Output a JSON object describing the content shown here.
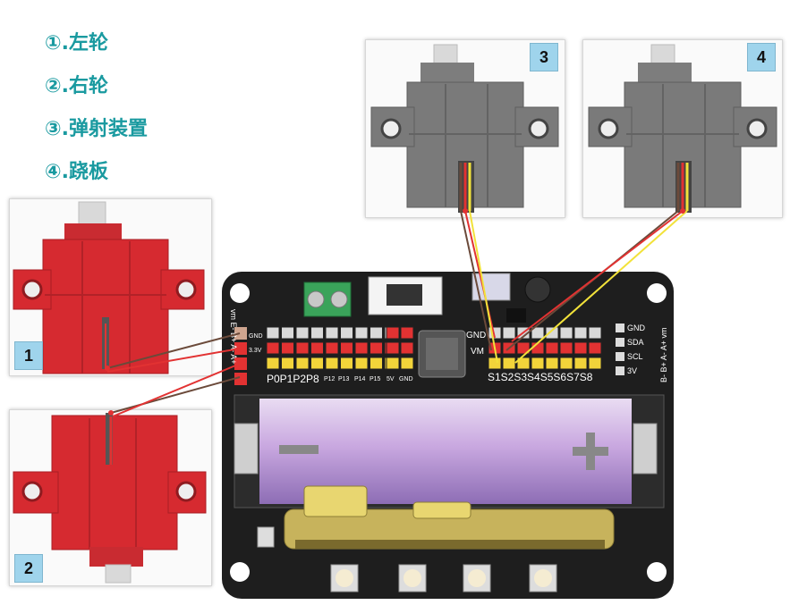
{
  "legend": [
    {
      "label": "①.左轮"
    },
    {
      "label": "②.右轮"
    },
    {
      "label": "③.弹射装置"
    },
    {
      "label": "④.跷板"
    }
  ],
  "badges": [
    "1",
    "2",
    "3",
    "4"
  ],
  "board": {
    "left_header": [
      "vm",
      "E",
      "B",
      "+",
      "A",
      "-",
      "A",
      "+"
    ],
    "left_header_text": "vm E- B+ A- A+",
    "gnd": "GND",
    "v33": "3.3V",
    "v5": "5V",
    "gnd2": "GND",
    "vm": "VM",
    "pin_labels_big": "P0P1P2P8",
    "pin_labels_small": [
      "P12",
      "P13",
      "P14",
      "P15"
    ],
    "servo_labels": "S1S2S3S4S5S6S7S8",
    "right_labels": [
      "GND",
      "SDA",
      "SCL",
      "3V"
    ],
    "right_vertical": "B- B+ A- A+ vm"
  },
  "colors": {
    "legend": "#1a9aa0",
    "badge": "#9fd4ec",
    "board": "#1e1e1e",
    "red_servo": "#d62a30",
    "grey_servo": "#7a7a7a",
    "battery": "#c9a8e0",
    "wire_brown": "#6b4a3a",
    "wire_red": "#e23232",
    "wire_yellow": "#f2e23a"
  }
}
